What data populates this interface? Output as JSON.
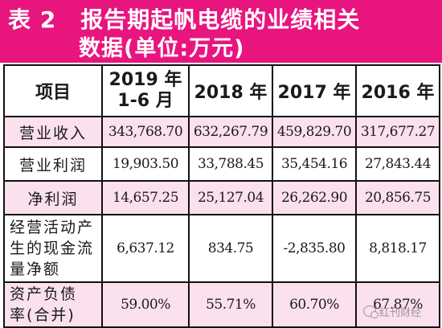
{
  "header": {
    "tag": "表 2",
    "title_line1": "报告期起帆电缆的业绩相关",
    "title_line2": "数据(单位:万元)"
  },
  "table": {
    "corner": "项目",
    "columns": [
      {
        "line1": "2019 年",
        "line2": "1-6 月"
      },
      {
        "line1": "2018 年"
      },
      {
        "line1": "2017 年"
      },
      {
        "line1": "2016 年"
      }
    ],
    "rows": [
      {
        "label": "营业收入",
        "values": [
          "343,768.70",
          "632,267.79",
          "459,829.70",
          "317,677.27"
        ]
      },
      {
        "label": "营业利润",
        "values": [
          "19,903.50",
          "33,788.45",
          "35,454.16",
          "27,843.44"
        ]
      },
      {
        "label": "净利润",
        "values": [
          "14,657.25",
          "25,127.04",
          "26,262.90",
          "20,856.75"
        ]
      },
      {
        "label_lines": [
          "经营活动产",
          "生的现金流",
          "量净额"
        ],
        "values": [
          "6,637.12",
          "834.75",
          "-2,835.80",
          "8,818.17"
        ]
      },
      {
        "label_lines": [
          "资产负债",
          "率(合并)"
        ],
        "values": [
          "59.00%",
          "55.71%",
          "60.70%",
          "67.87%"
        ]
      }
    ]
  },
  "watermark": {
    "text": "红刊财经"
  },
  "colors": {
    "header_bg": "#e8157f",
    "row_pink": "#fbe0ee"
  }
}
